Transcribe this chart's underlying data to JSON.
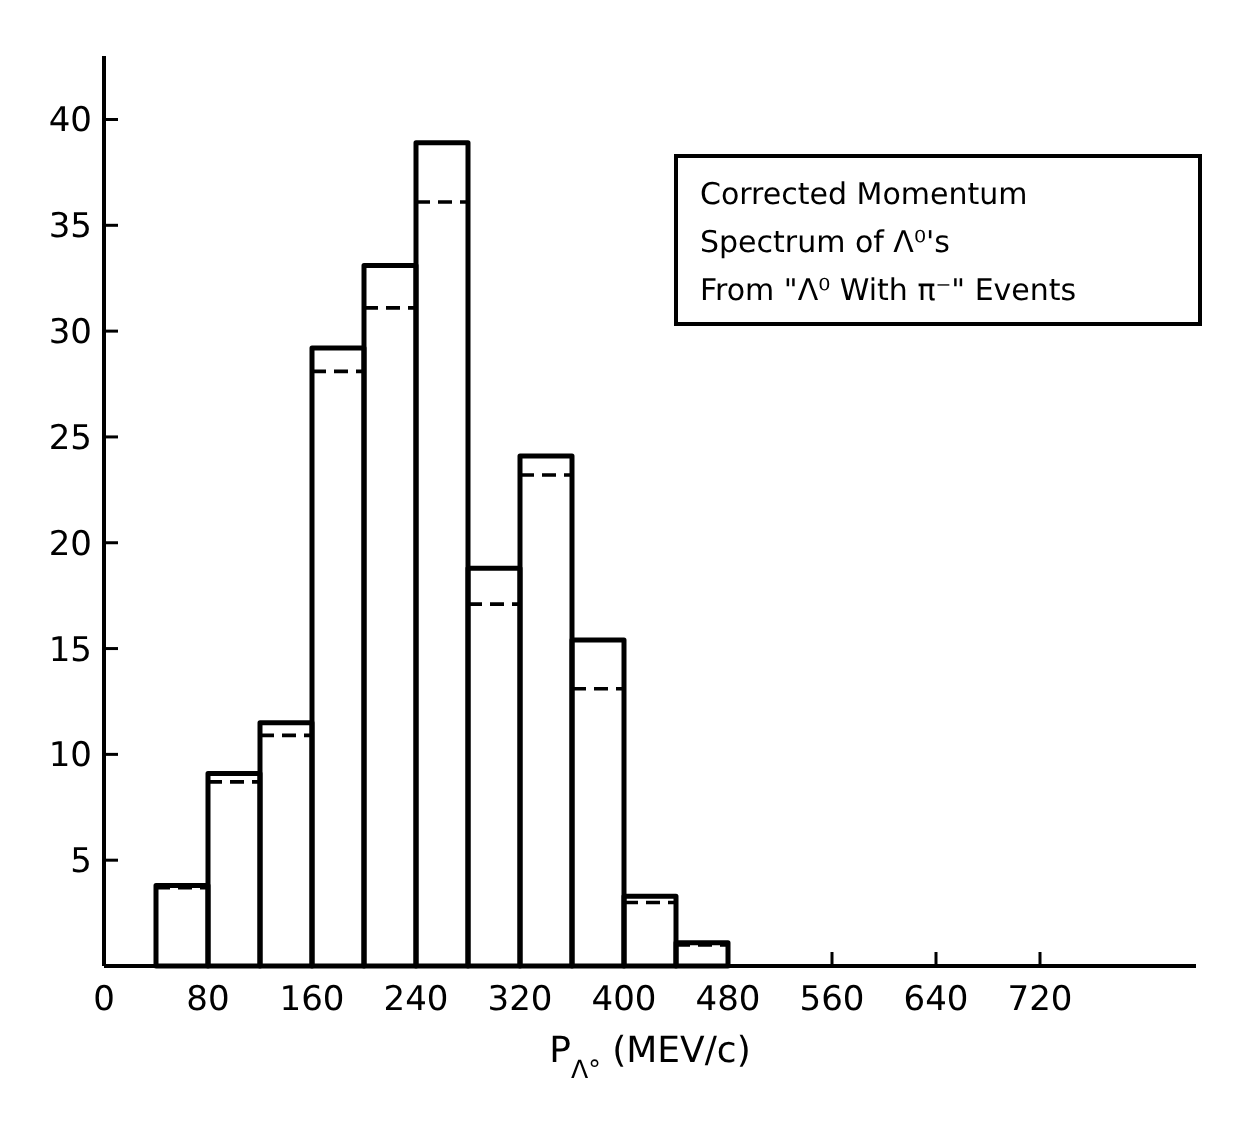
{
  "chart_data": {
    "type": "histogram",
    "annotations": [
      "Corrected Momentum",
      "Spectrum of Λ⁰'s",
      "From \"Λ⁰ With π⁻\" Events"
    ],
    "xlabel": "P$_{Λ°}$ (MEV/c)",
    "bins": [
      40,
      80,
      120,
      160,
      200,
      240,
      280,
      320,
      360,
      400,
      440,
      480
    ],
    "series": [
      {
        "color": "#000000",
        "line_style": "solid",
        "values": [
          3.8,
          9.1,
          11.5,
          29.2,
          33.1,
          38.9,
          18.8,
          24.1,
          15.4,
          3.3,
          1.1
        ]
      },
      {
        "color": "#000000",
        "line_style": "dashed",
        "values": [
          3.7,
          8.7,
          10.9,
          28.1,
          31.1,
          36.1,
          17.1,
          23.2,
          13.1,
          3.0,
          1.0
        ]
      }
    ],
    "xlim": [
      0,
      840
    ],
    "xticks": [
      0,
      80,
      160,
      240,
      320,
      400,
      480,
      560,
      640,
      720
    ],
    "ylim": [
      0,
      43
    ],
    "yticks": [
      5,
      10,
      15,
      20,
      25,
      30,
      35,
      40
    ],
    "grid": false
  }
}
